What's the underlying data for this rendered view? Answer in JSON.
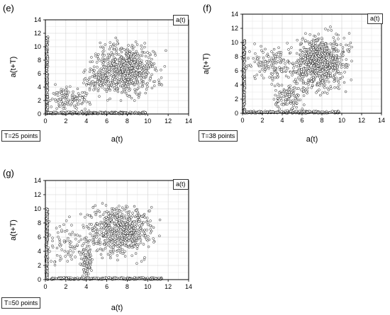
{
  "chart_data": [
    {
      "type": "scatter",
      "panel": "(e)",
      "legend": "a(t)",
      "annotation": "T=25 points",
      "xlabel": "a(t)",
      "ylabel": "a(t+T)",
      "xlim": [
        0,
        14
      ],
      "ylim": [
        0,
        14
      ],
      "x_ticks": [
        "0",
        "2",
        "4",
        "6",
        "8",
        "10",
        "12",
        "14"
      ],
      "y_ticks": [
        "0",
        "2",
        "4",
        "6",
        "8",
        "10",
        "12",
        "14"
      ],
      "grid": true,
      "clusters": [
        {
          "x_range": [
            0.05,
            0.25
          ],
          "y_range": [
            0.0,
            11.5
          ],
          "n": 220
        },
        {
          "x_range": [
            0.2,
            9.8
          ],
          "y_range": [
            0.0,
            0.3
          ],
          "n": 260
        },
        {
          "x_range": [
            5.0,
            10.5
          ],
          "y_range": [
            3.5,
            10.0
          ],
          "n": 650
        },
        {
          "x_range": [
            0.8,
            4.0
          ],
          "y_range": [
            0.5,
            4.0
          ],
          "n": 120
        },
        {
          "x_range": [
            4.0,
            6.0
          ],
          "y_range": [
            3.0,
            6.5
          ],
          "n": 60
        }
      ]
    },
    {
      "type": "scatter",
      "panel": "(f)",
      "legend": "a(t)",
      "annotation": "T=38 points",
      "xlabel": "a(t)",
      "ylabel": "a(t+T)",
      "xlim": [
        0,
        14
      ],
      "ylim": [
        0,
        14
      ],
      "x_ticks": [
        "0",
        "2",
        "4",
        "6",
        "8",
        "10",
        "12",
        "14"
      ],
      "y_ticks": [
        "0",
        "2",
        "4",
        "6",
        "8",
        "10",
        "12",
        "14"
      ],
      "grid": true,
      "clusters": [
        {
          "x_range": [
            0.05,
            0.25
          ],
          "y_range": [
            0.0,
            10.5
          ],
          "n": 200
        },
        {
          "x_range": [
            0.2,
            9.8
          ],
          "y_range": [
            0.0,
            0.3
          ],
          "n": 240
        },
        {
          "x_range": [
            5.5,
            10.0
          ],
          "y_range": [
            4.0,
            10.5
          ],
          "n": 750
        },
        {
          "x_range": [
            0.5,
            5.0
          ],
          "y_range": [
            5.0,
            9.0
          ],
          "n": 140
        },
        {
          "x_range": [
            3.0,
            6.0
          ],
          "y_range": [
            0.3,
            4.0
          ],
          "n": 110
        }
      ]
    },
    {
      "type": "scatter",
      "panel": "(g)",
      "legend": "a(t)",
      "annotation": "T=50 points",
      "xlabel": "a(t)",
      "ylabel": "a(t+T)",
      "xlim": [
        0,
        14
      ],
      "ylim": [
        0,
        14
      ],
      "x_ticks": [
        "0",
        "2",
        "4",
        "6",
        "8",
        "10",
        "12",
        "14"
      ],
      "y_ticks": [
        "0",
        "2",
        "4",
        "6",
        "8",
        "10",
        "12",
        "14"
      ],
      "grid": true,
      "clusters": [
        {
          "x_range": [
            0.05,
            0.25
          ],
          "y_range": [
            0.0,
            10.0
          ],
          "n": 200
        },
        {
          "x_range": [
            0.2,
            11.5
          ],
          "y_range": [
            0.0,
            0.3
          ],
          "n": 220
        },
        {
          "x_range": [
            4.5,
            10.0
          ],
          "y_range": [
            4.0,
            10.0
          ],
          "n": 600
        },
        {
          "x_range": [
            3.5,
            4.5
          ],
          "y_range": [
            0.3,
            5.0
          ],
          "n": 90
        },
        {
          "x_range": [
            0.5,
            4.0
          ],
          "y_range": [
            2.0,
            8.0
          ],
          "n": 80
        }
      ]
    }
  ]
}
